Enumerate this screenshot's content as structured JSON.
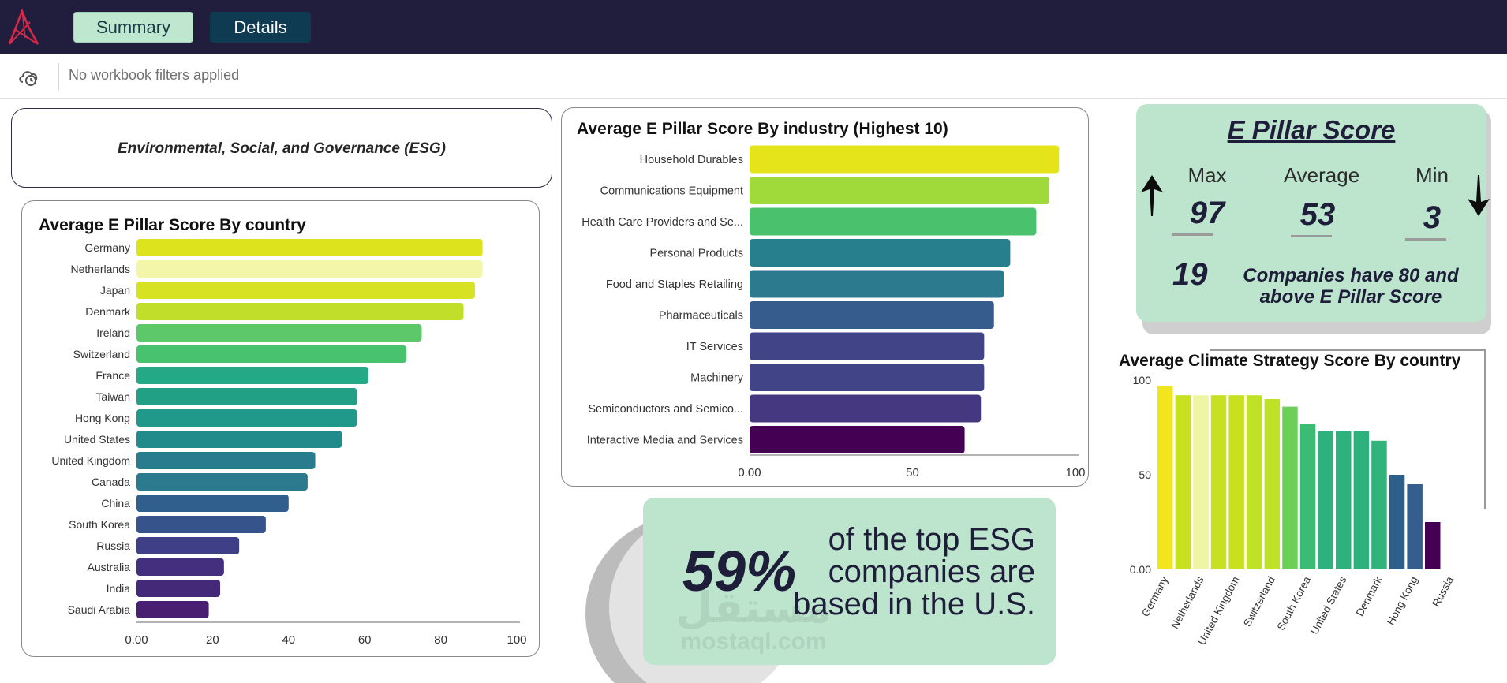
{
  "nav": {
    "tabs": [
      {
        "label": "Summary",
        "active": true
      },
      {
        "label": "Details",
        "active": false
      }
    ]
  },
  "filters": {
    "text": "No workbook filters applied",
    "icon": "cloud-clock-icon"
  },
  "esg_title": "Environmental, Social, and Governance (ESG)",
  "kpi": {
    "heading": "E Pillar Score",
    "max_label": "Max",
    "max_value": "97",
    "avg_label": "Average",
    "avg_value": "53",
    "min_label": "Min",
    "min_value": "3",
    "count_value": "19",
    "count_text": "Companies have 80 and above E Pillar Score"
  },
  "callout": {
    "percent": "59%",
    "text": "of the top ESG companies are based in the U.S."
  },
  "watermark": {
    "line1": "مستقل",
    "line2": "mostaql.com"
  },
  "chart_data": [
    {
      "id": "country",
      "type": "bar",
      "orientation": "horizontal",
      "title": "Average E Pillar Score By country",
      "categories": [
        "Germany",
        "Netherlands",
        "Japan",
        "Denmark",
        "Ireland",
        "Switzerland",
        "France",
        "Taiwan",
        "Hong Kong",
        "United States",
        "United Kingdom",
        "Canada",
        "China",
        "South Korea",
        "Russia",
        "Australia",
        "India",
        "Saudi Arabia"
      ],
      "values": [
        91,
        91,
        89,
        86,
        75,
        71,
        61,
        58,
        58,
        54,
        47,
        45,
        40,
        34,
        27,
        23,
        22,
        19
      ],
      "colors": [
        "#dde31d",
        "#f3f5a8",
        "#d6e222",
        "#c1df2a",
        "#5cc86a",
        "#48c26e",
        "#23a985",
        "#22a086",
        "#21998a",
        "#218b8c",
        "#287c8e",
        "#2b7a8d",
        "#305f8e",
        "#36538c",
        "#3e3f86",
        "#422f7e",
        "#452979",
        "#481f71"
      ],
      "xlim": [
        0,
        100
      ],
      "xticks": [
        "0.00",
        "20",
        "40",
        "60",
        "80",
        "100"
      ]
    },
    {
      "id": "industry",
      "type": "bar",
      "orientation": "horizontal",
      "title": "Average E Pillar Score By industry (Highest 10)",
      "categories": [
        "Household Durables",
        "Communications Equipment",
        "Health Care Providers and Se...",
        "Personal Products",
        "Food and Staples Retailing",
        "Pharmaceuticals",
        "IT Services",
        "Machinery",
        "Semiconductors and Semico...",
        "Interactive Media and Services"
      ],
      "values": [
        95,
        92,
        88,
        80,
        78,
        75,
        72,
        72,
        71,
        66
      ],
      "colors": [
        "#e5e41a",
        "#9fda3a",
        "#4ac16d",
        "#277f8e",
        "#2b7a8d",
        "#365c8d",
        "#414487",
        "#414487",
        "#453881",
        "#440154"
      ],
      "xlim": [
        0,
        100
      ],
      "xticks": [
        "0.00",
        "50",
        "100"
      ]
    },
    {
      "id": "climate",
      "type": "bar",
      "orientation": "vertical",
      "title": "Average Climate Strategy Score By country",
      "categories": [
        "Germany",
        "Netherlands",
        "",
        "United Kingdom",
        "",
        "Switzerland",
        "",
        "South Korea",
        "",
        "United States",
        "",
        "Denmark",
        "",
        "Hong Kong",
        "",
        "Russia"
      ],
      "tick_labels": [
        "Germany",
        "Netherlands",
        "United Kingdom",
        "Switzerland",
        "South Korea",
        "United States",
        "Denmark",
        "Hong Kong",
        "Russia"
      ],
      "values": [
        97,
        92,
        92,
        92,
        92,
        92,
        90,
        86,
        77,
        73,
        73,
        73,
        68,
        50,
        45,
        25
      ],
      "colors": [
        "#f1e51d",
        "#c7e020",
        "#eef5a4",
        "#c7e020",
        "#c7e020",
        "#bfe128",
        "#bfe128",
        "#6dce58",
        "#3cbb75",
        "#2db27d",
        "#2db27d",
        "#2db27d",
        "#30b47b",
        "#2c5f8a",
        "#355d8d",
        "#440154"
      ],
      "ylim": [
        0,
        100
      ],
      "yticks": [
        "0.00",
        "50",
        "100"
      ]
    }
  ]
}
